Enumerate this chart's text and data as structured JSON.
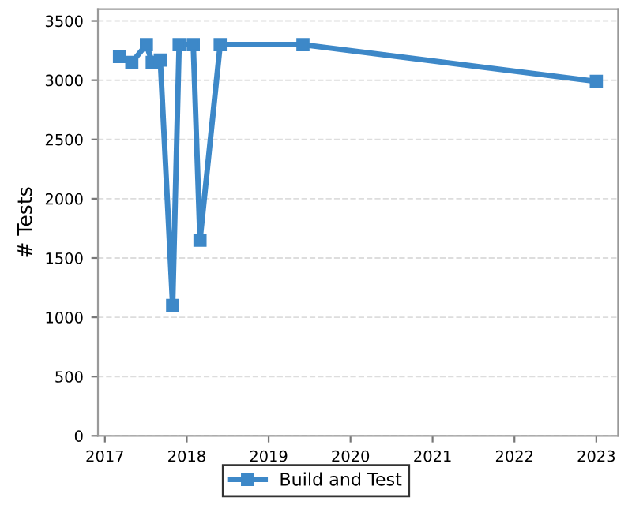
{
  "chart_data": {
    "type": "line",
    "ylabel": "# Tests",
    "x": [
      "2017-03-07",
      "2017-05-01",
      "2017-07-05",
      "2017-07-31",
      "2017-09-05",
      "2017-10-30",
      "2017-11-28",
      "2018-01-30",
      "2018-03-01",
      "2018-05-30",
      "2019-06-03",
      "2023-01-01"
    ],
    "series": [
      {
        "name": "Build and Test",
        "color": "#3d88c8",
        "values": [
          3200,
          3150,
          3300,
          3150,
          3170,
          1100,
          3300,
          3300,
          1650,
          3300,
          3300,
          2990
        ]
      }
    ],
    "xlim": [
      "2016-12-01",
      "2023-04-08"
    ],
    "xticks": [
      {
        "value": "2017-01-01",
        "label": "2017"
      },
      {
        "value": "2018-01-01",
        "label": "2018"
      },
      {
        "value": "2019-01-01",
        "label": "2019"
      },
      {
        "value": "2020-01-01",
        "label": "2020"
      },
      {
        "value": "2021-01-01",
        "label": "2021"
      },
      {
        "value": "2022-01-01",
        "label": "2022"
      },
      {
        "value": "2023-01-01",
        "label": "2023"
      }
    ],
    "ylim": [
      0,
      3600
    ],
    "yticks": [
      0,
      500,
      1000,
      1500,
      2000,
      2500,
      3000,
      3500
    ],
    "grid": "y",
    "legend": "bottom",
    "marker": "square",
    "line_style": "solid"
  }
}
